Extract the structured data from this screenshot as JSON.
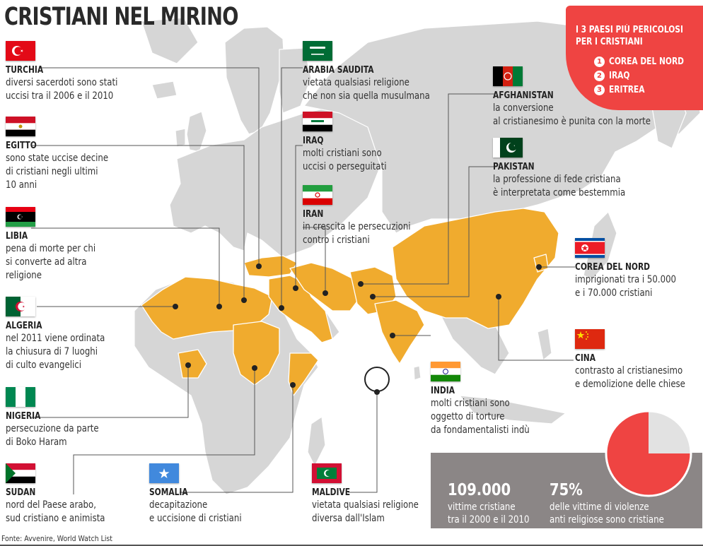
{
  "title": "CRISTIANI NEL MIRINO",
  "highlight_color": "#f0ab2e",
  "land_color": "#d6d6d6",
  "accent_color": "#ef4442",
  "top3": {
    "title": "I 3 PAESI PIÙ PERICOLOSI\nPER I CRISTIANI",
    "items": [
      {
        "rank": "1",
        "name": "COREA DEL NORD"
      },
      {
        "rank": "2",
        "name": "IRAQ"
      },
      {
        "rank": "3",
        "name": "ERITREA"
      }
    ]
  },
  "countries": {
    "turchia": {
      "name": "TURCHIA",
      "desc": "diversi sacerdoti sono stati\nuccisi tra il 2006 e il 2010",
      "flag": "turkey-flag"
    },
    "egitto": {
      "name": "EGITTO",
      "desc": "sono state uccise decine\ndi cristiani negli ultimi\n10 anni",
      "flag": "egypt-flag"
    },
    "libia": {
      "name": "LIBIA",
      "desc": "pena di morte per chi\nsi converte ad altra\nreligione",
      "flag": "libya-flag"
    },
    "algeria": {
      "name": "ALGERIA",
      "desc": "nel 2011 viene ordinata\nla chiusura di 7 luoghi\ndi culto evangelici",
      "flag": "algeria-flag"
    },
    "nigeria": {
      "name": "NIGERIA",
      "desc": "persecuzione da parte\ndi Boko Haram",
      "flag": "nigeria-flag"
    },
    "sudan": {
      "name": "SUDAN",
      "desc": "nord del Paese arabo,\nsud cristiano e animista",
      "flag": "sudan-flag"
    },
    "somalia": {
      "name": "SOMALIA",
      "desc": "decapitazione\ne uccisione di cristiani",
      "flag": "somalia-flag"
    },
    "maldive": {
      "name": "MALDIVE",
      "desc": "vietata qualsiasi religione\ndiversa dall'Islam",
      "flag": "maldives-flag"
    },
    "arabia": {
      "name": "ARABIA SAUDITA",
      "desc": "vietata qualsiasi religione\nche non sia quella musulmana",
      "flag": "saudi-arabia-flag"
    },
    "iraq": {
      "name": "IRAQ",
      "desc": "molti cristiani sono\nuccisi o perseguitati",
      "flag": "iraq-flag"
    },
    "iran": {
      "name": "IRAN",
      "desc": "in crescita le persecuzioni\ncontro i cristiani",
      "flag": "iran-flag"
    },
    "afghanistan": {
      "name": "AFGHANISTAN",
      "desc": "la conversione\nal cristianesimo è punita con la morte",
      "flag": "afghanistan-flag"
    },
    "pakistan": {
      "name": "PAKISTAN",
      "desc": "la professione di fede cristiana\nè interpretata come bestemmia",
      "flag": "pakistan-flag"
    },
    "corea": {
      "name": "COREA DEL NORD",
      "desc": "imprigionati tra i 50.000\ne i 70.000 cristiani",
      "flag": "north-korea-flag"
    },
    "cina": {
      "name": "CINA",
      "desc": "contrasto al cristianesimo\ne demolizione delle chiese",
      "flag": "china-flag"
    },
    "india": {
      "name": "INDIA",
      "desc": "molti cristiani sono\noggetto di torture\nda fondamentalisti indù",
      "flag": "india-flag"
    }
  },
  "stats": {
    "victims_value": "109.000",
    "victims_desc": "vittime cristiane\ntra il 2000 e il 2010",
    "percent_value": "75%",
    "percent_desc": "delle vittime di violenze\nanti religiose sono cristiane",
    "percent_fraction": 0.75
  },
  "source": "Fonte: Avvenire, World Watch List"
}
